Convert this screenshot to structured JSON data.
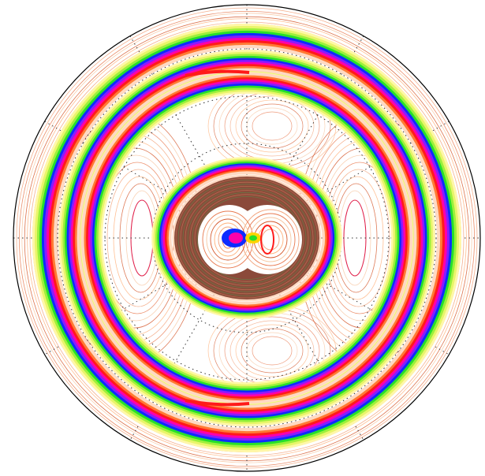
{
  "figure": {
    "kind": "polar contour plot",
    "background": "#ffffff",
    "boundary_color": "#000000",
    "grid_color": "#333333"
  },
  "bands": {
    "color_sequence": [
      "#fff7a8",
      "#e8f56a",
      "#9cf03c",
      "#26e02a",
      "#0d2cff",
      "#8a1aff",
      "#ff00aa",
      "#ff1a1a",
      "#ff7a33",
      "#ffd9c2"
    ]
  },
  "thin_contours": {
    "colors": [
      "#f2a27a",
      "#e87a50",
      "#f7c6a0",
      "#d65a2e",
      "#ffb07a"
    ]
  },
  "core": {
    "ring_color": "#8b4a3a",
    "lobe_color": "#f0b39a",
    "center_colors": [
      "#0d2cff",
      "#ff00aa",
      "#ffd400",
      "#26e02a",
      "#ff1a1a"
    ]
  }
}
